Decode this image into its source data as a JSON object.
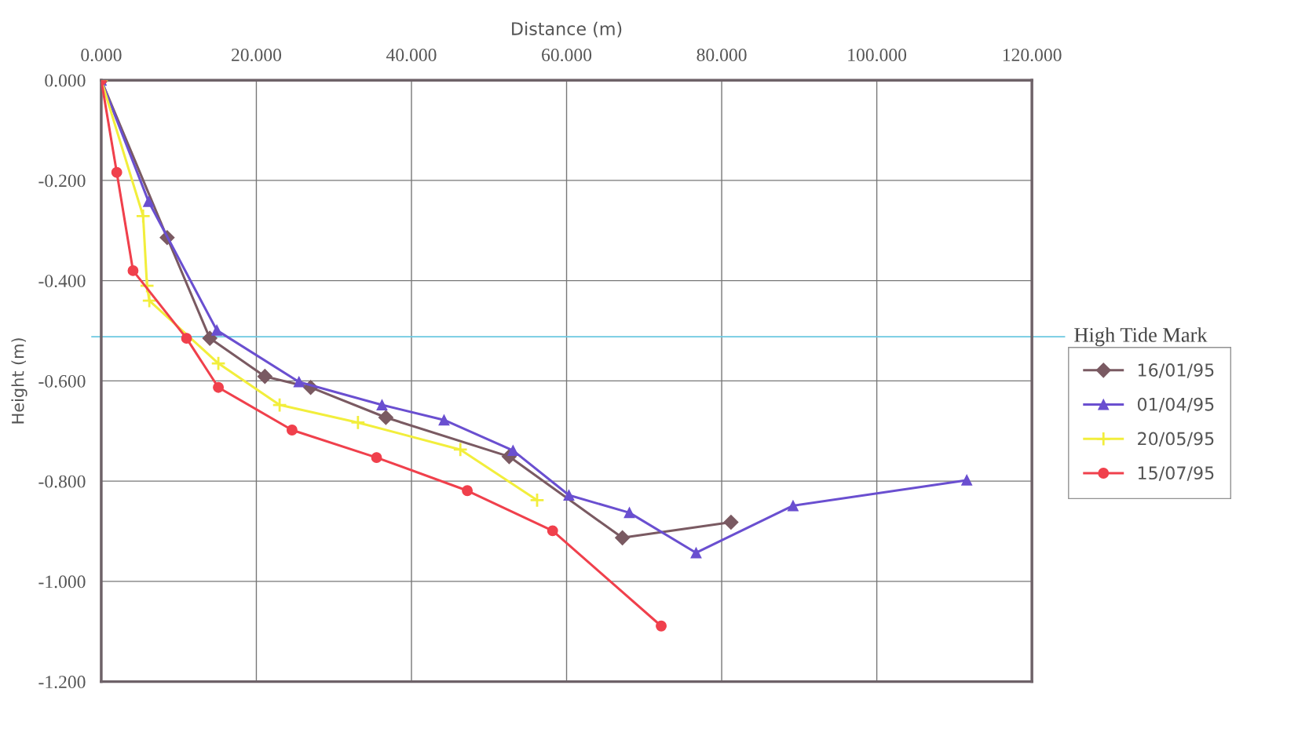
{
  "chart_data": {
    "type": "line",
    "xlabel": "Distance (m)",
    "ylabel": "Height (m)",
    "xlim": [
      0,
      120
    ],
    "xticks": [
      {
        "value": 0,
        "label": "0.000"
      },
      {
        "value": 20,
        "label": "20.000"
      },
      {
        "value": 40,
        "label": "40.000"
      },
      {
        "value": 60,
        "label": "60.000"
      },
      {
        "value": 80,
        "label": "80.000"
      },
      {
        "value": 100,
        "label": "100.000"
      },
      {
        "value": 120,
        "label": "120.000"
      }
    ],
    "ylim": [
      -1.2,
      0
    ],
    "yticks": [
      {
        "value": 0,
        "label": "0.000"
      },
      {
        "value": -0.2,
        "label": "-0.200"
      },
      {
        "value": -0.4,
        "label": "-0.400"
      },
      {
        "value": -0.6,
        "label": "-0.600"
      },
      {
        "value": -0.8,
        "label": "-0.800"
      },
      {
        "value": -1.0,
        "label": "-1.000"
      },
      {
        "value": -1.2,
        "label": "-1.200"
      }
    ],
    "grid": true,
    "legend": "right",
    "series": [
      {
        "name": "16/01/95",
        "color": "#7a5a62",
        "marker": "diamond",
        "x": [
          0,
          8.5,
          14.0,
          21.1,
          27.0,
          36.7,
          52.6,
          67.2,
          81.2
        ],
        "values": [
          0,
          -0.314,
          -0.515,
          -0.591,
          -0.613,
          -0.673,
          -0.751,
          -0.913,
          -0.882
        ]
      },
      {
        "name": "01/04/95",
        "color": "#6a4fd0",
        "marker": "triangle",
        "x": [
          0,
          6.1,
          14.9,
          25.5,
          36.2,
          44.2,
          53.1,
          60.3,
          68.1,
          76.7,
          89.2,
          111.6
        ],
        "values": [
          0,
          -0.242,
          -0.499,
          -0.602,
          -0.648,
          -0.678,
          -0.739,
          -0.828,
          -0.863,
          -0.943,
          -0.849,
          -0.798
        ]
      },
      {
        "name": "20/05/95",
        "color": "#f2ee3c",
        "marker": "cross",
        "x": [
          0,
          5.4,
          5.9,
          6.2,
          15.1,
          23.0,
          33.1,
          46.3,
          56.2
        ],
        "values": [
          0,
          -0.271,
          -0.41,
          -0.44,
          -0.565,
          -0.648,
          -0.683,
          -0.737,
          -0.838
        ]
      },
      {
        "name": "15/07/95",
        "color": "#f0404c",
        "marker": "circle",
        "x": [
          0,
          2.0,
          4.1,
          11.0,
          15.1,
          24.6,
          35.5,
          47.2,
          58.2,
          72.2
        ],
        "values": [
          0,
          -0.184,
          -0.38,
          -0.515,
          -0.613,
          -0.698,
          -0.753,
          -0.819,
          -0.899,
          -1.089
        ]
      }
    ],
    "ref_lines": [
      {
        "axis": "y",
        "value": -0.512,
        "label": "High Tide Mark",
        "color": "#6cc8e0"
      }
    ]
  }
}
